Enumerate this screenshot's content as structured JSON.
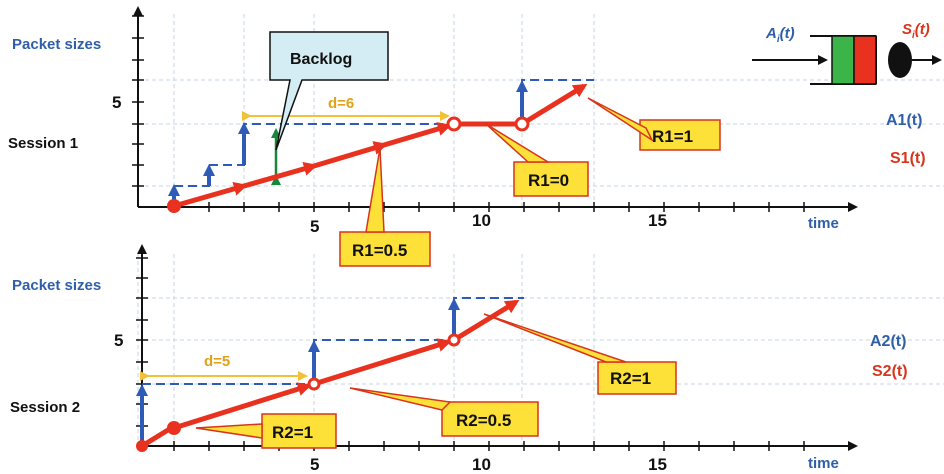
{
  "colors": {
    "arrival": "#2f5bb7",
    "service": "#e8311f",
    "grid": "#c9d6e3",
    "axis": "#111111",
    "callout_fill": "#fde038",
    "callout_border": "#d9341c",
    "backlog_fill": "#d4ecf3",
    "delay": "#f2c13a",
    "backlog_arrow": "#17873b",
    "queue_green": "#3bb54a",
    "queue_red": "#e8311f"
  },
  "legend": {
    "arrival_label": "A",
    "arrival_sub": "i",
    "arrival_suffix": "(t)",
    "service_label": "S",
    "service_sub": "i",
    "service_suffix": "(t)"
  },
  "top": {
    "title": "Session 1",
    "ylabel": "Packet sizes",
    "y_tick": "5",
    "xlabel": "time",
    "x_ticks": [
      "5",
      "10",
      "15"
    ],
    "delay_label": "d=6",
    "backlog_label": "Backlog",
    "arrival_curve_label": "A1(t)",
    "service_curve_label": "S1(t)",
    "callouts": [
      {
        "id": "r1-05",
        "text": "R1=0.5"
      },
      {
        "id": "r1-0",
        "text": "R1=0"
      },
      {
        "id": "r1-1",
        "text": "R1=1"
      }
    ]
  },
  "bottom": {
    "title": "Session 2",
    "ylabel": "Packet sizes",
    "y_tick": "5",
    "xlabel": "time",
    "x_ticks": [
      "5",
      "10",
      "15"
    ],
    "delay_label": "d=5",
    "arrival_curve_label": "A2(t)",
    "service_curve_label": "S2(t)",
    "callouts": [
      {
        "id": "r2-1a",
        "text": "R2=1"
      },
      {
        "id": "r2-05",
        "text": "R2=0.5"
      },
      {
        "id": "r2-1b",
        "text": "R2=1"
      }
    ]
  },
  "chart_data": [
    {
      "type": "line",
      "title": "Session 1",
      "xlabel": "time",
      "ylabel": "Packet sizes",
      "xlim": [
        0,
        20
      ],
      "ylim": [
        0,
        8
      ],
      "series": [
        {
          "name": "A1(t)",
          "step": true,
          "x": [
            0,
            1,
            2,
            3,
            9,
            11,
            13
          ],
          "y": [
            0,
            1,
            2,
            3,
            3,
            5,
            5
          ]
        },
        {
          "name": "S1(t)",
          "x": [
            0,
            3,
            9,
            10,
            11,
            13
          ],
          "y": [
            0,
            1,
            3,
            3,
            3,
            5
          ]
        }
      ],
      "annotations": [
        "R1=0.5",
        "R1=0",
        "R1=1",
        "d=6",
        "Backlog"
      ]
    },
    {
      "type": "line",
      "title": "Session 2",
      "xlabel": "time",
      "ylabel": "Packet sizes",
      "xlim": [
        0,
        20
      ],
      "ylim": [
        0,
        8
      ],
      "series": [
        {
          "name": "A2(t)",
          "step": true,
          "x": [
            0,
            5,
            9,
            11
          ],
          "y": [
            2,
            4,
            6,
            6
          ]
        },
        {
          "name": "S2(t)",
          "x": [
            0,
            1,
            5,
            9,
            11
          ],
          "y": [
            0,
            0.5,
            2,
            4,
            6
          ]
        }
      ],
      "annotations": [
        "R2=1",
        "R2=0.5",
        "R2=1",
        "d=5"
      ]
    }
  ]
}
